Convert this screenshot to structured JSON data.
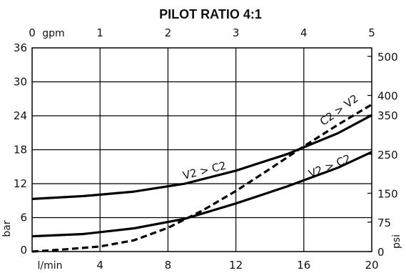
{
  "chart_data": {
    "type": "line",
    "title": "PILOT RATIO 4:1",
    "grid": true,
    "x_axis": {
      "label": "l/min",
      "range": [
        0,
        20
      ],
      "ticks": [
        4,
        8,
        12,
        16,
        20
      ]
    },
    "x2_axis": {
      "label": "gpm",
      "range": [
        0,
        5
      ],
      "ticks": [
        0,
        1,
        2,
        3,
        4,
        5
      ]
    },
    "y_axis": {
      "label": "bar",
      "range": [
        0,
        36
      ],
      "ticks": [
        0,
        6,
        12,
        18,
        24,
        30,
        36
      ]
    },
    "y2_axis": {
      "label": "psi",
      "ticks": [
        {
          "label": "0",
          "bar": 0
        },
        {
          "label": "75",
          "bar": 5.2
        },
        {
          "label": "150",
          "bar": 10.3
        },
        {
          "label": "250",
          "bar": 17.2
        },
        {
          "label": "350",
          "bar": 24.1
        },
        {
          "label": "400",
          "bar": 27.6
        },
        {
          "label": "500",
          "bar": 34.5
        }
      ]
    },
    "series": [
      {
        "name": "V2 > C2",
        "style": "solid",
        "color": "#000000",
        "x": [
          0,
          3,
          6,
          9,
          12,
          15,
          18,
          20
        ],
        "y": [
          9.3,
          9.8,
          10.6,
          12.0,
          14.3,
          17.2,
          20.9,
          24.1
        ]
      },
      {
        "name": "V2 > C2",
        "style": "solid",
        "color": "#000000",
        "x": [
          0,
          3,
          6,
          9,
          12,
          15,
          18,
          20
        ],
        "y": [
          2.7,
          3.1,
          4.1,
          5.8,
          8.5,
          11.5,
          14.8,
          17.6
        ]
      },
      {
        "name": "C2 > V2",
        "style": "dashed",
        "color": "#000000",
        "x": [
          0,
          2,
          4,
          6,
          8,
          10,
          12,
          14,
          16,
          18,
          20
        ],
        "y": [
          0,
          0.4,
          0.9,
          2.0,
          4.2,
          7.2,
          10.7,
          14.6,
          18.6,
          22.4,
          26.0
        ]
      }
    ],
    "annotations": [
      {
        "text": "V2 > C2",
        "series": 0,
        "x": 10.2,
        "y": 13.7,
        "angle": -14
      },
      {
        "text": "V2 > C2",
        "series": 1,
        "x": 17.6,
        "y": 14.5,
        "angle": -22
      },
      {
        "text": "C2 > V2",
        "series": 2,
        "x": 18.2,
        "y": 24.5,
        "angle": -36
      }
    ]
  }
}
